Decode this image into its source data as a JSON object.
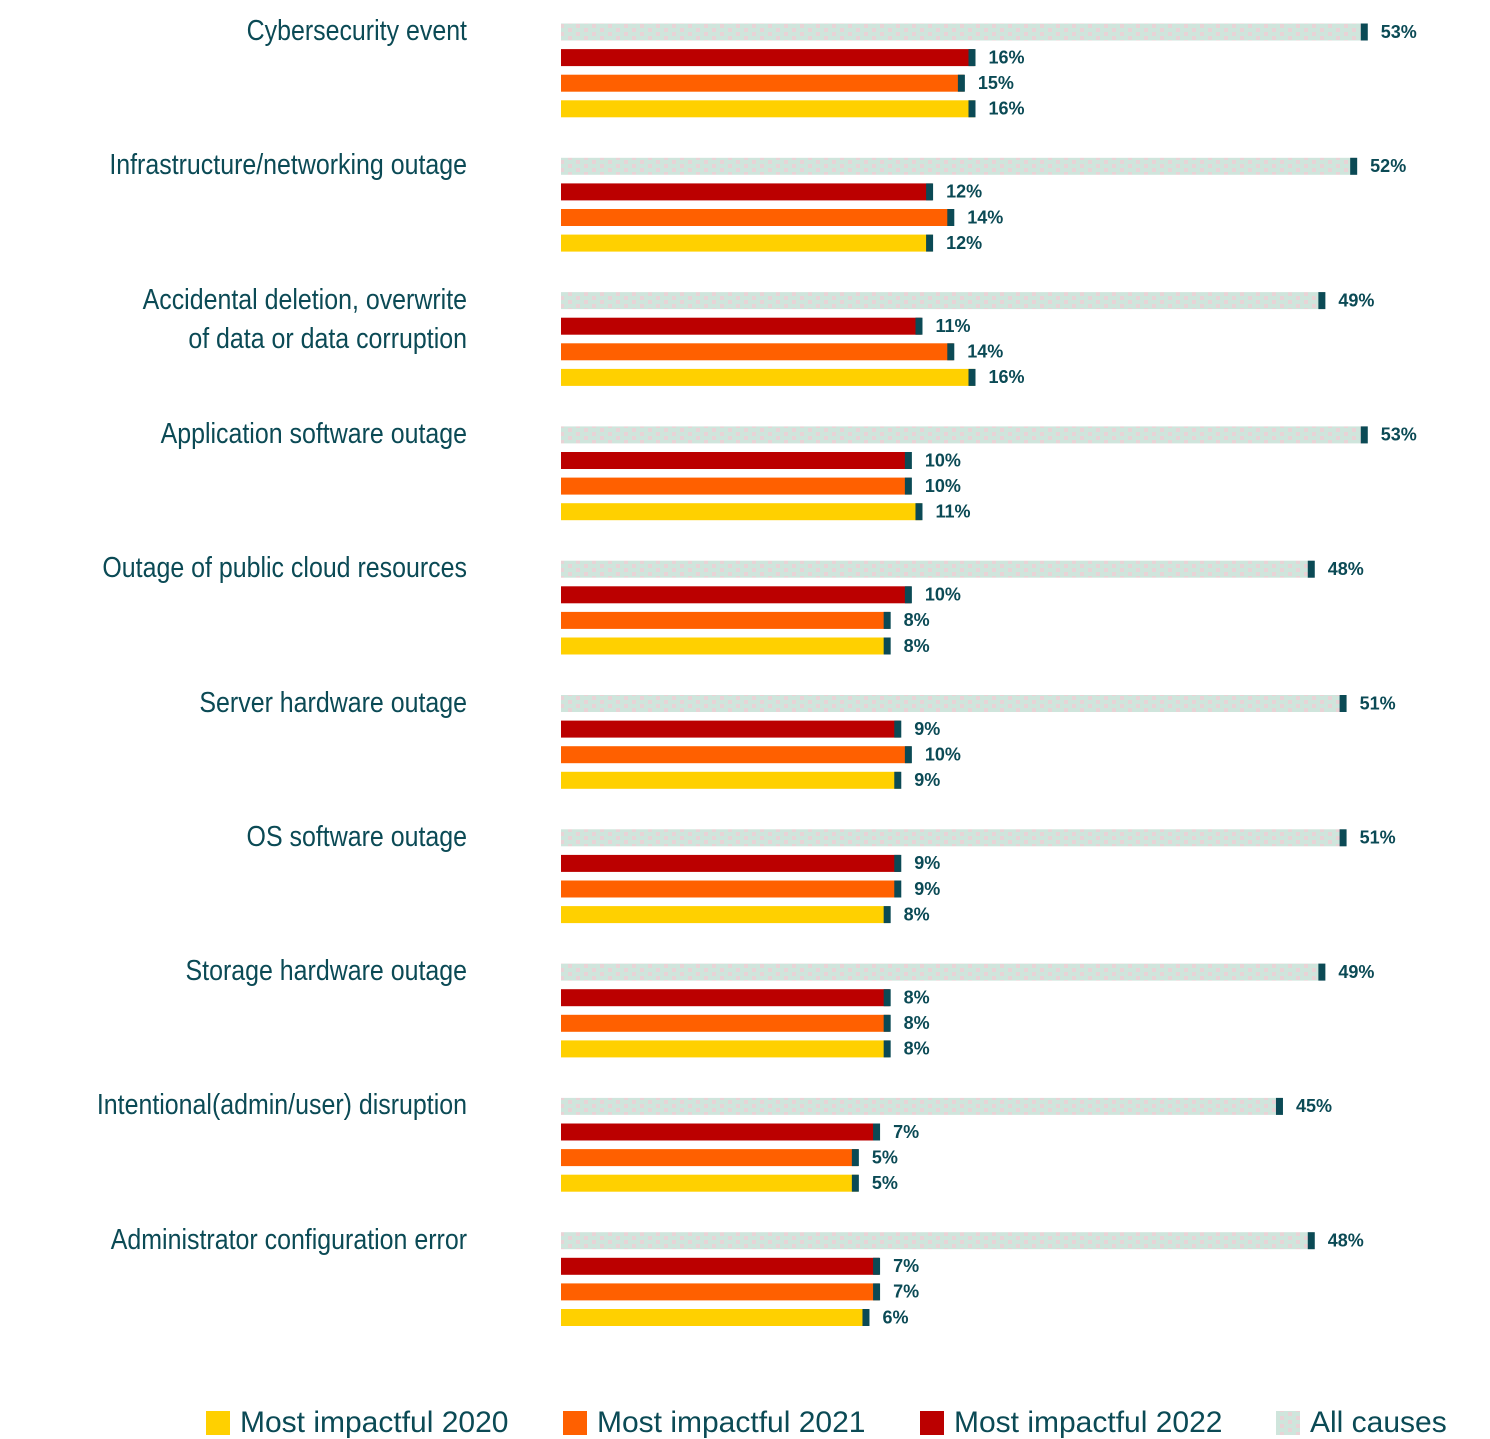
{
  "chart_data": {
    "type": "bar",
    "orientation": "horizontal",
    "categories": [
      "Cybersecurity event",
      "Infrastructure/networking outage",
      "Accidental deletion, overwrite\nof data or data corruption",
      "Application software outage",
      "Outage of public cloud resources",
      "Server hardware outage",
      "OS software outage",
      "Storage hardware outage",
      "Intentional(admin/user) disruption",
      "Administrator configuration error"
    ],
    "series": [
      {
        "name": "All causes",
        "color": "#cfe5dc",
        "values": [
          53,
          52,
          49,
          53,
          48,
          51,
          51,
          49,
          45,
          48
        ],
        "value_labels": [
          "53%",
          "52%",
          "49%",
          "53%",
          "48%",
          "51%",
          "51%",
          "49%",
          "45%",
          "48%"
        ]
      },
      {
        "name": "Most impactful 2022",
        "color": "#bb0000",
        "values": [
          16,
          12,
          11,
          10,
          10,
          9,
          9,
          8,
          7,
          7
        ],
        "value_labels": [
          "16%",
          "12%",
          "11%",
          "10%",
          "10%",
          "9%",
          "9%",
          "8%",
          "7%",
          "7%"
        ]
      },
      {
        "name": "Most impactful 2021",
        "color": "#ff6000",
        "values": [
          15,
          14,
          14,
          10,
          8,
          10,
          9,
          8,
          5,
          7
        ],
        "value_labels": [
          "15%",
          "14%",
          "14%",
          "10%",
          "8%",
          "10%",
          "9%",
          "8%",
          "5%",
          "7%"
        ]
      },
      {
        "name": "Most impactful 2020",
        "color": "#ffd000",
        "values": [
          16,
          12,
          16,
          11,
          8,
          9,
          8,
          8,
          5,
          6
        ],
        "value_labels": [
          "16%",
          "12%",
          "16%",
          "11%",
          "8%",
          "9%",
          "8%",
          "8%",
          "5%",
          "6%"
        ]
      }
    ],
    "xlim": [
      -23,
      60
    ]
  }
}
